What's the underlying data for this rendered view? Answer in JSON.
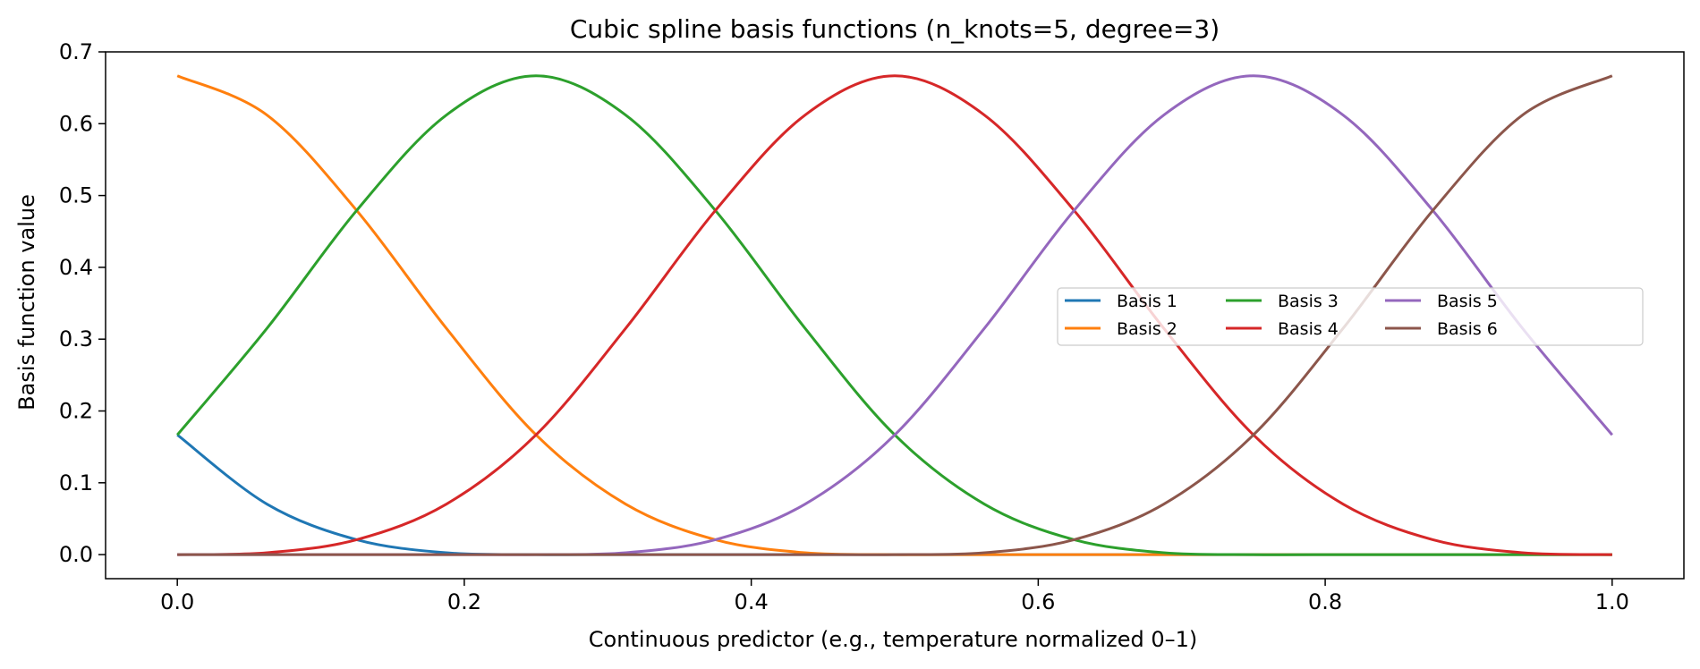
{
  "chart_data": {
    "type": "line",
    "title": "Cubic spline basis functions (n_knots=5, degree=3)",
    "xlabel": "Continuous predictor (e.g., temperature normalized 0–1)",
    "ylabel": "Basis function value",
    "xlim": [
      -0.05,
      1.05
    ],
    "ylim": [
      -0.0335,
      0.7
    ],
    "xticks": [
      0.0,
      0.2,
      0.4,
      0.6,
      0.8,
      1.0
    ],
    "xtick_labels": [
      "0.0",
      "0.2",
      "0.4",
      "0.6",
      "0.8",
      "1.0"
    ],
    "yticks": [
      0.0,
      0.1,
      0.2,
      0.3,
      0.4,
      0.5,
      0.6,
      0.7
    ],
    "ytick_labels": [
      "0.0",
      "0.1",
      "0.2",
      "0.3",
      "0.4",
      "0.5",
      "0.6",
      "0.7"
    ],
    "grid": false,
    "legend_position": "center-right",
    "legend_columns": 4,
    "x": [
      0.0,
      0.0625,
      0.125,
      0.1875,
      0.25,
      0.3125,
      0.375,
      0.4375,
      0.5,
      0.5625,
      0.625,
      0.6875,
      0.75,
      0.8125,
      0.875,
      0.9375,
      1.0
    ],
    "series": [
      {
        "name": "Basis 1",
        "color": "#1f77b4",
        "values": [
          0.1667,
          0.0703,
          0.0208,
          0.0026,
          0.0,
          0.0,
          0.0,
          0.0,
          0.0,
          0.0,
          0.0,
          0.0,
          0.0,
          0.0,
          0.0,
          0.0,
          0.0
        ]
      },
      {
        "name": "Basis 2",
        "color": "#ff7f0e",
        "values": [
          0.6667,
          0.612,
          0.4792,
          0.3151,
          0.1667,
          0.0703,
          0.0208,
          0.0026,
          0.0,
          0.0,
          0.0,
          0.0,
          0.0,
          0.0,
          0.0,
          0.0,
          0.0
        ]
      },
      {
        "name": "Basis 3",
        "color": "#2ca02c",
        "values": [
          0.1667,
          0.3151,
          0.4792,
          0.612,
          0.6667,
          0.612,
          0.4792,
          0.3151,
          0.1667,
          0.0703,
          0.0208,
          0.0026,
          0.0,
          0.0,
          0.0,
          0.0,
          0.0
        ]
      },
      {
        "name": "Basis 4",
        "color": "#d62728",
        "values": [
          0.0,
          0.0026,
          0.0208,
          0.0703,
          0.1667,
          0.3151,
          0.4792,
          0.612,
          0.6667,
          0.612,
          0.4792,
          0.3151,
          0.1667,
          0.0703,
          0.0208,
          0.0026,
          0.0
        ]
      },
      {
        "name": "Basis 5",
        "color": "#9467bd",
        "values": [
          0.0,
          0.0,
          0.0,
          0.0,
          0.0,
          0.0026,
          0.0208,
          0.0703,
          0.1667,
          0.3151,
          0.4792,
          0.612,
          0.6667,
          0.612,
          0.4792,
          0.3151,
          0.1667
        ]
      },
      {
        "name": "Basis 6",
        "color": "#8c564b",
        "values": [
          0.0,
          0.0,
          0.0,
          0.0,
          0.0,
          0.0,
          0.0,
          0.0,
          0.0,
          0.0026,
          0.0208,
          0.0703,
          0.1667,
          0.3151,
          0.4792,
          0.612,
          0.6667
        ]
      }
    ]
  }
}
